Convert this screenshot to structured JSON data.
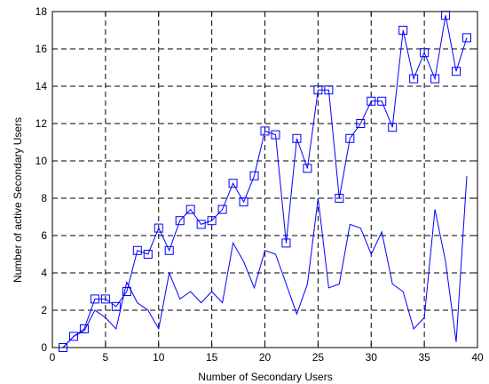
{
  "chart_data": {
    "type": "line",
    "title": "",
    "xlabel": "Number of Secondary Users",
    "ylabel": "Number of active Secondary Users",
    "xlim": [
      0,
      40
    ],
    "ylim": [
      0,
      18
    ],
    "xticks": [
      0,
      5,
      10,
      15,
      20,
      25,
      30,
      35,
      40
    ],
    "yticks": [
      0,
      2,
      4,
      6,
      8,
      10,
      12,
      14,
      16,
      18
    ],
    "grid": true,
    "line_color": "#0000ff",
    "series": [
      {
        "marker": "square",
        "x": [
          1,
          2,
          3,
          4,
          5,
          6,
          7,
          8,
          9,
          10,
          11,
          12,
          13,
          14,
          15,
          16,
          17,
          18,
          19,
          20,
          21,
          22,
          23,
          24,
          25,
          26,
          27,
          28,
          29,
          30,
          31,
          32,
          33,
          34,
          35,
          36,
          37,
          38,
          39
        ],
        "values": [
          0,
          0.6,
          1.0,
          2.6,
          2.6,
          2.2,
          3.0,
          5.2,
          5.0,
          6.4,
          5.2,
          6.8,
          7.4,
          6.6,
          6.8,
          7.4,
          8.8,
          7.8,
          9.2,
          11.6,
          11.4,
          5.6,
          11.2,
          9.6,
          13.8,
          13.8,
          8.0,
          11.2,
          12.0,
          13.2,
          13.2,
          11.8,
          17.0,
          14.4,
          15.8,
          14.4,
          17.8,
          14.8,
          16.6
        ]
      },
      {
        "marker": "none",
        "x": [
          1,
          2,
          3,
          4,
          5,
          6,
          7,
          8,
          9,
          10,
          11,
          12,
          13,
          14,
          15,
          16,
          17,
          18,
          19,
          20,
          21,
          22,
          23,
          24,
          25,
          26,
          27,
          28,
          29,
          30,
          31,
          32,
          33,
          34,
          35,
          36,
          37,
          38,
          39
        ],
        "values": [
          0,
          0.6,
          0.9,
          2.0,
          1.6,
          1.0,
          3.5,
          2.4,
          2.0,
          1.0,
          4.0,
          2.6,
          3.0,
          2.4,
          3.0,
          2.4,
          5.6,
          4.6,
          3.2,
          5.2,
          5.0,
          3.4,
          1.8,
          3.4,
          8.0,
          3.2,
          3.4,
          6.6,
          6.4,
          5.0,
          6.2,
          3.4,
          3.0,
          1.0,
          1.6,
          7.4,
          4.6,
          0.3,
          9.2
        ]
      }
    ]
  }
}
